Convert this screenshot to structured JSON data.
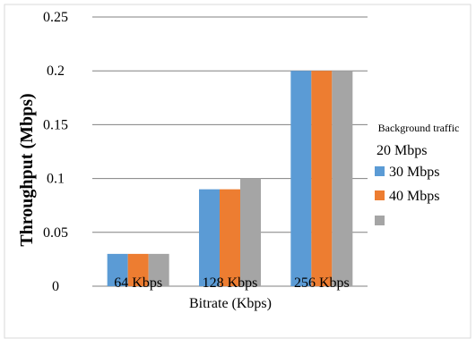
{
  "chart_data": {
    "type": "bar",
    "categories": [
      "64 Kbps",
      "128 Kbps",
      "256 Kbps"
    ],
    "series": [
      {
        "name": "20 Mbps",
        "values": [
          0.03,
          0.09,
          0.2
        ],
        "color": "#5b9bd5"
      },
      {
        "name": "30 Mbps",
        "values": [
          0.03,
          0.09,
          0.2
        ],
        "color": "#ed7d31"
      },
      {
        "name": "40 Mbps",
        "values": [
          0.03,
          0.1,
          0.2
        ],
        "color": "#a5a5a5"
      }
    ],
    "xlabel": "Bitrate (Kbps)",
    "ylabel": "Throughput (Mbps)",
    "ylim": [
      0,
      0.25
    ],
    "yticks": [
      0,
      0.05,
      0.1,
      0.15,
      0.2,
      0.25
    ],
    "ytick_labels": [
      "0",
      "0.05",
      "0.1",
      "0.15",
      "0.2",
      "0.25"
    ],
    "grid": true,
    "legend_title": "Background traffic",
    "legend_position": "right"
  }
}
